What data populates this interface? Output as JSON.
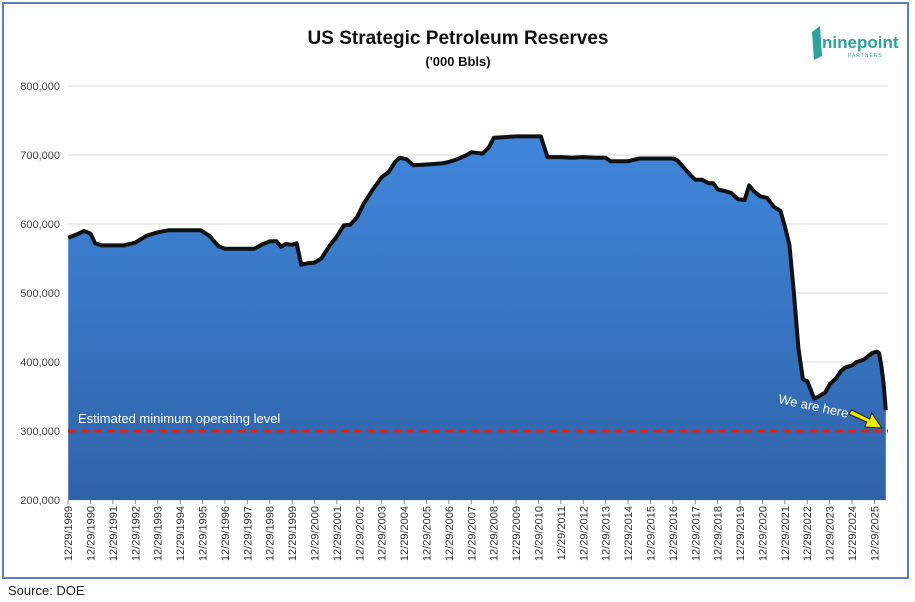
{
  "source_label": "Source: DOE",
  "logo": {
    "text": "ninepoint",
    "sub": "PARTNERS"
  },
  "chart_data": {
    "type": "area",
    "title": "US Strategic Petroleum Reserves",
    "subtitle": "('000 Bbls)",
    "xlabel": "",
    "ylabel": "",
    "ylim": [
      200000,
      800000
    ],
    "yticks": [
      200000,
      300000,
      400000,
      500000,
      600000,
      700000,
      800000
    ],
    "ytick_labels": [
      "200,000",
      "300,000",
      "400,000",
      "500,000",
      "600,000",
      "700,000",
      "800,000"
    ],
    "xlim": [
      1989.99,
      2026.6
    ],
    "xtick_labels": [
      "12/29/1989",
      "12/29/1990",
      "12/29/1991",
      "12/29/1992",
      "12/29/1993",
      "12/29/1994",
      "12/29/1995",
      "12/29/1996",
      "12/29/1997",
      "12/29/1998",
      "12/29/1999",
      "12/29/2000",
      "12/29/2001",
      "12/29/2002",
      "12/29/2003",
      "12/29/2004",
      "12/29/2005",
      "12/29/2006",
      "12/29/2007",
      "12/29/2008",
      "12/29/2009",
      "12/29/2010",
      "12/29/2011",
      "12/29/2012",
      "12/29/2013",
      "12/29/2014",
      "12/29/2015",
      "12/29/2016",
      "12/29/2017",
      "12/29/2018",
      "12/29/2019",
      "12/29/2020",
      "12/29/2021",
      "12/29/2022",
      "12/29/2023",
      "12/29/2024",
      "12/29/2025"
    ],
    "grid": true,
    "fill_color": "#3f7fd0",
    "line_color": "#111111",
    "series": [
      {
        "values": [
          [
            1990.0,
            580000
          ],
          [
            1990.4,
            585000
          ],
          [
            1990.7,
            590000
          ],
          [
            1991.0,
            586000
          ],
          [
            1991.2,
            572000
          ],
          [
            1991.5,
            569000
          ],
          [
            1992.0,
            569000
          ],
          [
            1992.5,
            569000
          ],
          [
            1993.0,
            573000
          ],
          [
            1993.5,
            583000
          ],
          [
            1994.0,
            588000
          ],
          [
            1994.5,
            591000
          ],
          [
            1995.0,
            591000
          ],
          [
            1995.5,
            591000
          ],
          [
            1995.9,
            591000
          ],
          [
            1996.3,
            583000
          ],
          [
            1996.7,
            568000
          ],
          [
            1997.0,
            564000
          ],
          [
            1997.5,
            564000
          ],
          [
            1998.0,
            564000
          ],
          [
            1998.3,
            564000
          ],
          [
            1998.7,
            571000
          ],
          [
            1999.0,
            575000
          ],
          [
            1999.3,
            575000
          ],
          [
            1999.5,
            567000
          ],
          [
            1999.7,
            571000
          ],
          [
            2000.0,
            570000
          ],
          [
            2000.2,
            572000
          ],
          [
            2000.4,
            541000
          ],
          [
            2000.7,
            543000
          ],
          [
            2001.0,
            544000
          ],
          [
            2001.3,
            550000
          ],
          [
            2001.7,
            570000
          ],
          [
            2002.0,
            582000
          ],
          [
            2002.3,
            598000
          ],
          [
            2002.6,
            599000
          ],
          [
            2002.9,
            610000
          ],
          [
            2003.2,
            630000
          ],
          [
            2003.6,
            650000
          ],
          [
            2004.0,
            668000
          ],
          [
            2004.3,
            675000
          ],
          [
            2004.6,
            690000
          ],
          [
            2004.8,
            696000
          ],
          [
            2005.1,
            694000
          ],
          [
            2005.4,
            685000
          ],
          [
            2005.8,
            686000
          ],
          [
            2006.3,
            687000
          ],
          [
            2006.7,
            688000
          ],
          [
            2007.0,
            690000
          ],
          [
            2007.3,
            693000
          ],
          [
            2007.8,
            700000
          ],
          [
            2008.0,
            704000
          ],
          [
            2008.5,
            702000
          ],
          [
            2008.8,
            712000
          ],
          [
            2009.0,
            725000
          ],
          [
            2009.5,
            726000
          ],
          [
            2010.0,
            727000
          ],
          [
            2010.5,
            727000
          ],
          [
            2011.0,
            727000
          ],
          [
            2011.1,
            727000
          ],
          [
            2011.4,
            697000
          ],
          [
            2012.0,
            697000
          ],
          [
            2012.5,
            696000
          ],
          [
            2013.0,
            697000
          ],
          [
            2013.5,
            696000
          ],
          [
            2014.0,
            696000
          ],
          [
            2014.2,
            691000
          ],
          [
            2014.8,
            691000
          ],
          [
            2015.0,
            691000
          ],
          [
            2015.5,
            695000
          ],
          [
            2016.0,
            695000
          ],
          [
            2016.5,
            695000
          ],
          [
            2017.0,
            695000
          ],
          [
            2017.2,
            692000
          ],
          [
            2017.5,
            681000
          ],
          [
            2017.8,
            670000
          ],
          [
            2018.0,
            664000
          ],
          [
            2018.3,
            664000
          ],
          [
            2018.6,
            659000
          ],
          [
            2018.8,
            659000
          ],
          [
            2019.0,
            650000
          ],
          [
            2019.3,
            648000
          ],
          [
            2019.6,
            645000
          ],
          [
            2019.9,
            636000
          ],
          [
            2020.2,
            635000
          ],
          [
            2020.4,
            656000
          ],
          [
            2020.6,
            648000
          ],
          [
            2020.9,
            640000
          ],
          [
            2021.2,
            638000
          ],
          [
            2021.5,
            625000
          ],
          [
            2021.8,
            619000
          ],
          [
            2022.0,
            596000
          ],
          [
            2022.2,
            570000
          ],
          [
            2022.4,
            500000
          ],
          [
            2022.6,
            420000
          ],
          [
            2022.8,
            375000
          ],
          [
            2023.0,
            372000
          ],
          [
            2023.3,
            347000
          ],
          [
            2023.5,
            350000
          ],
          [
            2023.8,
            356000
          ],
          [
            2024.0,
            368000
          ],
          [
            2024.3,
            377000
          ],
          [
            2024.5,
            387000
          ],
          [
            2024.7,
            392000
          ],
          [
            2025.0,
            395000
          ],
          [
            2025.2,
            400000
          ],
          [
            2025.5,
            403000
          ],
          [
            2025.7,
            408000
          ],
          [
            2025.9,
            413000
          ],
          [
            2026.1,
            415000
          ],
          [
            2026.2,
            413000
          ],
          [
            2026.3,
            395000
          ],
          [
            2026.4,
            370000
          ],
          [
            2026.5,
            330000
          ]
        ]
      }
    ],
    "reference_line": {
      "value": 300000,
      "label": "Estimated minimum operating level",
      "color": "#e0211c"
    },
    "annotation": {
      "text": "We are here",
      "x": 2026.5,
      "y": 300000,
      "arrow_color": "#f2ea00"
    }
  }
}
